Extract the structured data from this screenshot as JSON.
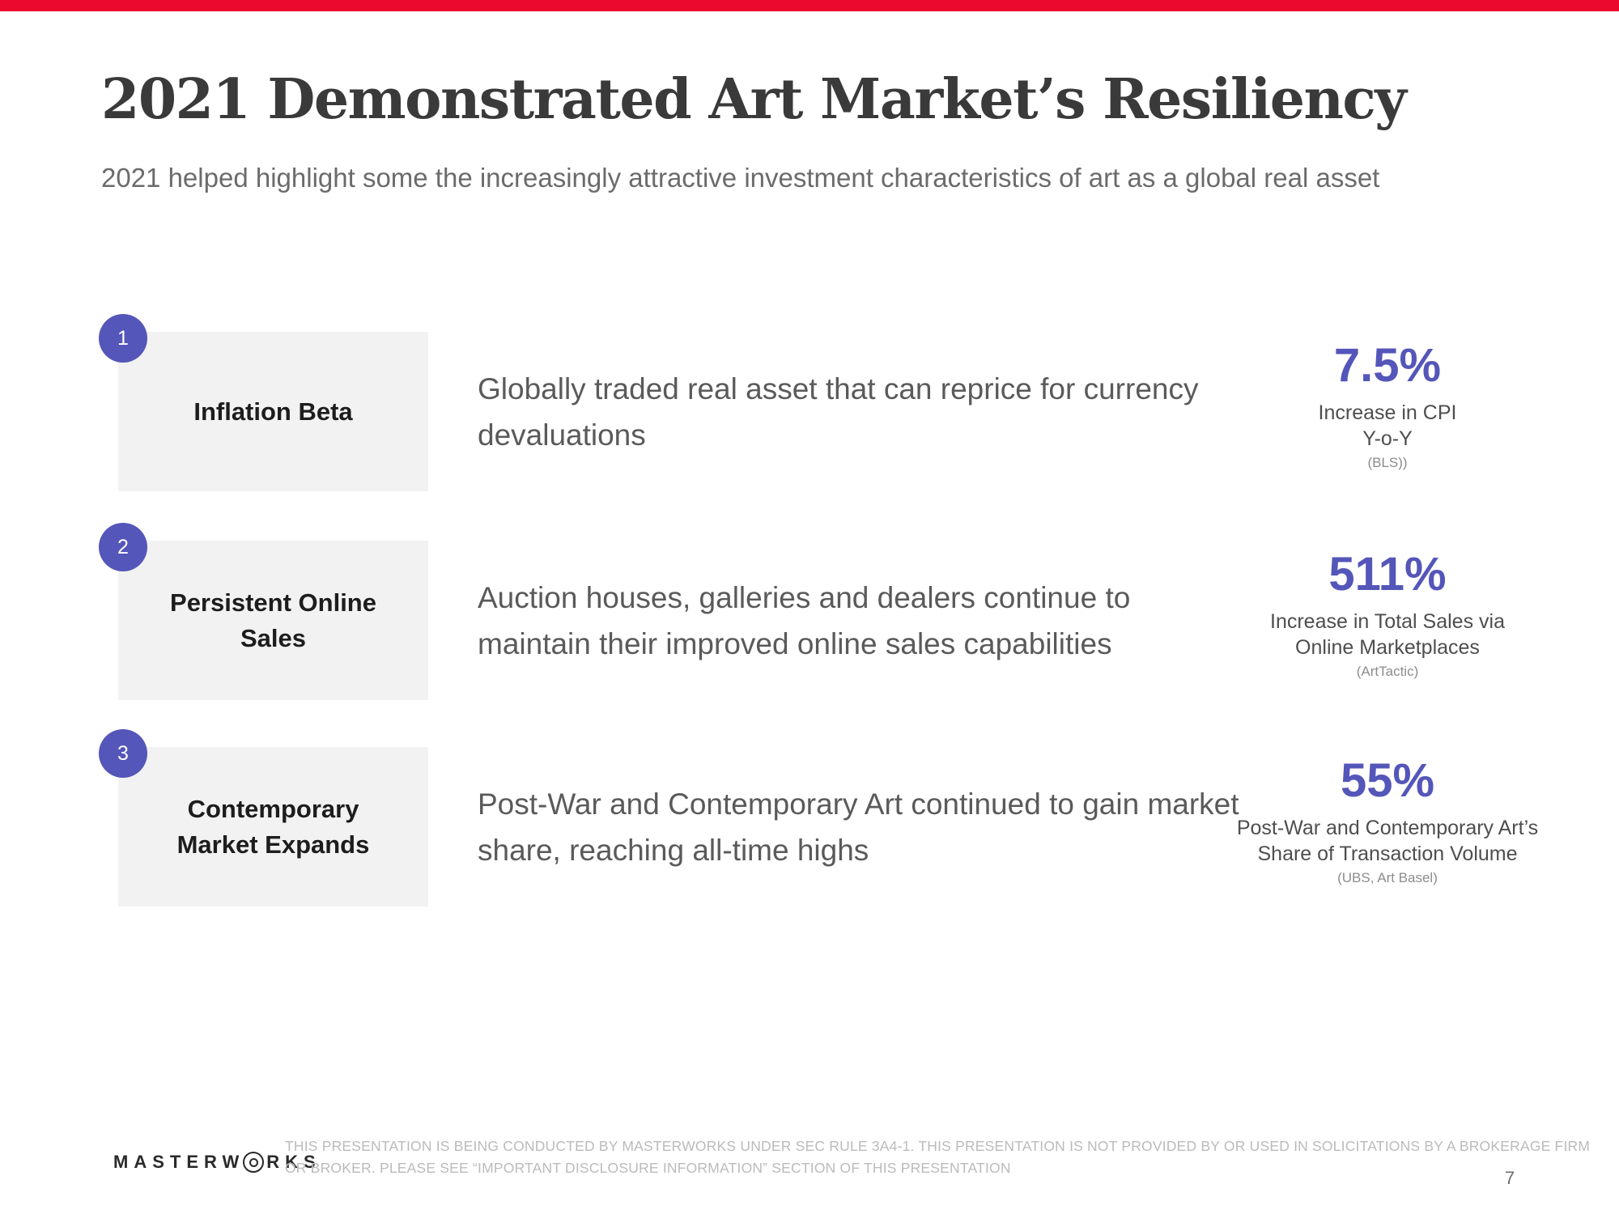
{
  "colors": {
    "red": "#EB0A2E",
    "purple": "#5456B9"
  },
  "header": {
    "title": "2021 Demonstrated Art Market’s Resiliency",
    "subtitle": "2021 helped highlight some the increasingly attractive investment characteristics of art as a global real asset"
  },
  "rows": [
    {
      "number": "1",
      "label": "Inflation Beta",
      "description": "Globally traded real asset that can reprice for currency devaluations",
      "stat_value": "7.5%",
      "stat_caption": "Increase in CPI\nY-o-Y",
      "stat_source": "(BLS))"
    },
    {
      "number": "2",
      "label": "Persistent Online Sales",
      "description": "Auction houses, galleries and dealers continue to maintain their improved online sales capabilities",
      "stat_value": "511%",
      "stat_caption": "Increase in Total Sales via\nOnline Marketplaces",
      "stat_source": "(ArtTactic)"
    },
    {
      "number": "3",
      "label": "Contemporary Market Expands",
      "description": "Post-War and Contemporary Art continued to gain market share, reaching all-time highs",
      "stat_value": "55%",
      "stat_caption": "Post-War and Contemporary Art’s\nShare of Transaction Volume",
      "stat_source": "(UBS, Art Basel)"
    }
  ],
  "footer": {
    "logo_left": "MASTERW",
    "logo_right": "RKS",
    "disclaimer": "THIS PRESENTATION  IS BEING CONDUCTED BY MASTERWORKS UNDER SEC RULE 3A4-1. THIS PRESENTATION  IS NOT PROVIDED BY OR USED IN SOLICITATIONS BY A BROKERAGE FIRM OR BROKER. PLEASE SEE “IMPORTANT DISCLOSURE INFORMATION” SECTION OF THIS PRESENTATION",
    "page_number": "7"
  }
}
